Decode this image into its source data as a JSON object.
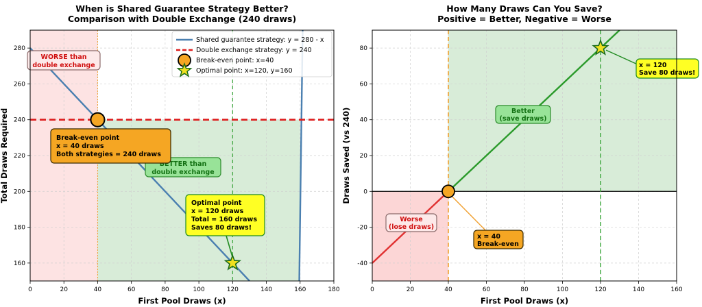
{
  "chart_data": [
    {
      "type": "line",
      "title_line1": "When is Shared Guarantee Strategy Better?",
      "title_line2": "Comparison with Double Exchange (240 draws)",
      "xlabel": "First Pool Draws (x)",
      "ylabel": "Total Draws Required",
      "xlim": [
        0,
        180
      ],
      "ylim": [
        150,
        290
      ],
      "xticks": [
        0,
        20,
        40,
        60,
        80,
        100,
        120,
        140,
        160,
        180
      ],
      "yticks": [
        160,
        180,
        200,
        220,
        240,
        260,
        280
      ],
      "grid": true,
      "legend_position": "top-right",
      "regions": [
        {
          "name": "worse",
          "x_from": 0,
          "x_to": 40,
          "color": "#fde3e3"
        },
        {
          "name": "better",
          "x_from": 40,
          "x_to": 160,
          "y_to": 240,
          "color": "#d8ecd8"
        }
      ],
      "series": [
        {
          "name": "Shared guarantee strategy: y = 280 - x",
          "color": "#4a7fb0",
          "style": "solid",
          "x": [
            0,
            20,
            40,
            60,
            80,
            100,
            120,
            130
          ],
          "y": [
            280,
            260,
            240,
            220,
            200,
            180,
            160,
            150
          ]
        },
        {
          "name": "Double exchange strategy: y = 240",
          "color": "#dd1c1c",
          "style": "dashed",
          "x": [
            0,
            180
          ],
          "y": [
            240,
            240
          ]
        }
      ],
      "steep_segment": {
        "color": "#4a7fb0",
        "x": [
          159.5,
          161.5
        ],
        "y": [
          150,
          290
        ]
      },
      "vlines": [
        {
          "x": 40,
          "color": "#f0a030",
          "style": "dotted"
        },
        {
          "x": 120,
          "color": "#3aa53a",
          "style": "dashed"
        }
      ],
      "points": [
        {
          "name": "Break-even point: x=40",
          "x": 40,
          "y": 240,
          "marker": "circle",
          "color": "#f5a623"
        },
        {
          "name": "Optimal point: x=120, y=160",
          "x": 120,
          "y": 160,
          "marker": "star",
          "color": "#f0e020"
        }
      ],
      "annotations": {
        "worse_lines": [
          "WORSE than",
          "double exchange"
        ],
        "better_lines": [
          "BETTER than",
          "double exchange"
        ],
        "breakeven_lines": [
          "Break-even point",
          "x = 40 draws",
          "Both strategies = 240 draws"
        ],
        "optimal_lines": [
          "Optimal point",
          "x = 120 draws",
          "Total = 160 draws",
          "Saves 80 draws!"
        ]
      }
    },
    {
      "type": "line",
      "title_line1": "How Many Draws Can You Save?",
      "title_line2": "Positive = Better, Negative = Worse",
      "xlabel": "First Pool Draws (x)",
      "ylabel": "Draws Saved (vs 240)",
      "xlim": [
        0,
        160
      ],
      "ylim": [
        -50,
        90
      ],
      "xticks": [
        0,
        20,
        40,
        60,
        80,
        100,
        120,
        140,
        160
      ],
      "yticks": [
        -40,
        -20,
        0,
        20,
        40,
        60,
        80
      ],
      "grid": true,
      "regions": [
        {
          "name": "worse",
          "x_from": 0,
          "x_to": 40,
          "y_from": -50,
          "y_to": 0,
          "color": "#fcd6d6"
        },
        {
          "name": "better",
          "x_from": 40,
          "x_to": 160,
          "y_from": 0,
          "y_to": 90,
          "color": "#d8ecd8"
        }
      ],
      "series": [
        {
          "name": "worse",
          "color": "#e03030",
          "x": [
            0,
            40
          ],
          "y": [
            -40,
            0
          ]
        },
        {
          "name": "better",
          "color": "#2a9a2a",
          "x": [
            40,
            130
          ],
          "y": [
            0,
            90
          ]
        }
      ],
      "hline": {
        "y": 0,
        "color": "#000000"
      },
      "vlines": [
        {
          "x": 40,
          "color": "#f0a030",
          "style": "dashed"
        },
        {
          "x": 120,
          "color": "#3aa53a",
          "style": "dashed"
        }
      ],
      "points": [
        {
          "name": "Break-even",
          "x": 40,
          "y": 0,
          "marker": "circle",
          "color": "#f5a623"
        },
        {
          "name": "Optimal",
          "x": 120,
          "y": 80,
          "marker": "star",
          "color": "#f0e020"
        }
      ],
      "annotations": {
        "better_lines": [
          "Better",
          "(save draws)"
        ],
        "worse_lines": [
          "Worse",
          "(lose draws)"
        ],
        "breakeven_lines": [
          "x = 40",
          "Break-even"
        ],
        "optimal_lines": [
          "x = 120",
          "Save 80 draws!"
        ]
      }
    }
  ]
}
